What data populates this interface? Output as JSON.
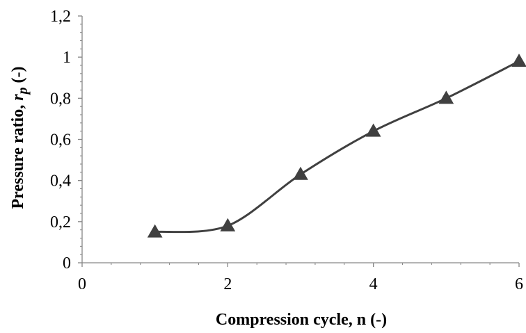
{
  "chart_data": {
    "type": "line",
    "title": "",
    "xlabel": "Compression cycle, n (-)",
    "ylabel": {
      "prefix": "Pressure ratio, ",
      "symbol": "r",
      "subscript": "p",
      "suffix": " (-)"
    },
    "xlim": [
      0,
      6
    ],
    "ylim": [
      0,
      1.2
    ],
    "x_ticks": [
      0,
      2,
      4,
      6
    ],
    "x_tick_labels": [
      "0",
      "2",
      "4",
      "6"
    ],
    "y_ticks": [
      0,
      0.2,
      0.4,
      0.6,
      0.8,
      1.0,
      1.2
    ],
    "y_tick_labels": [
      "0",
      "0,2",
      "0,4",
      "0,6",
      "0,8",
      "1",
      "1,2"
    ],
    "grid": false,
    "legend": "none",
    "series": [
      {
        "marker": "triangle",
        "smooth": true,
        "color": "#404040",
        "x": [
          1,
          2,
          3,
          4,
          5,
          6
        ],
        "y": [
          0.15,
          0.18,
          0.43,
          0.64,
          0.8,
          0.98
        ]
      }
    ]
  }
}
